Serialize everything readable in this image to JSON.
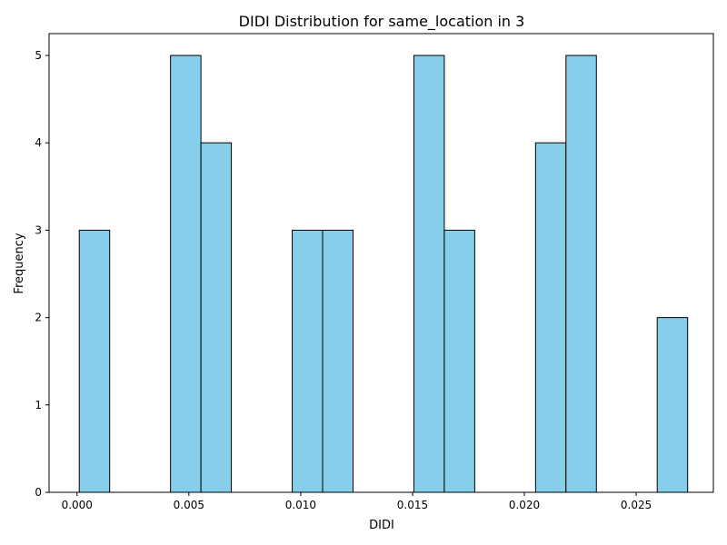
{
  "chart_data": {
    "type": "bar",
    "title": "DIDI Distribution for same_location in 3",
    "xlabel": "DIDI",
    "ylabel": "Frequency",
    "xlim": [
      -0.00125,
      0.02845
    ],
    "ylim": [
      0,
      5.25
    ],
    "bin_width": 0.00136,
    "bins": [
      {
        "x0": 0.0001,
        "x1": 0.00146,
        "count": 3
      },
      {
        "x0": 0.00146,
        "x1": 0.00282,
        "count": 0
      },
      {
        "x0": 0.00282,
        "x1": 0.00418,
        "count": 0
      },
      {
        "x0": 0.00418,
        "x1": 0.00554,
        "count": 5
      },
      {
        "x0": 0.00554,
        "x1": 0.0069,
        "count": 4
      },
      {
        "x0": 0.0069,
        "x1": 0.00826,
        "count": 0
      },
      {
        "x0": 0.00826,
        "x1": 0.00962,
        "count": 0
      },
      {
        "x0": 0.00962,
        "x1": 0.01098,
        "count": 3
      },
      {
        "x0": 0.01098,
        "x1": 0.01234,
        "count": 3
      },
      {
        "x0": 0.01234,
        "x1": 0.0137,
        "count": 0
      },
      {
        "x0": 0.0137,
        "x1": 0.01506,
        "count": 0
      },
      {
        "x0": 0.01506,
        "x1": 0.01642,
        "count": 5
      },
      {
        "x0": 0.01642,
        "x1": 0.01778,
        "count": 3
      },
      {
        "x0": 0.01778,
        "x1": 0.01914,
        "count": 0
      },
      {
        "x0": 0.01914,
        "x1": 0.0205,
        "count": 0
      },
      {
        "x0": 0.0205,
        "x1": 0.02186,
        "count": 4
      },
      {
        "x0": 0.02186,
        "x1": 0.02322,
        "count": 5
      },
      {
        "x0": 0.02322,
        "x1": 0.02458,
        "count": 0
      },
      {
        "x0": 0.02458,
        "x1": 0.02594,
        "count": 0
      },
      {
        "x0": 0.02594,
        "x1": 0.0273,
        "count": 2
      }
    ],
    "xticks": [
      {
        "value": 0.0,
        "label": "0.000"
      },
      {
        "value": 0.005,
        "label": "0.005"
      },
      {
        "value": 0.01,
        "label": "0.010"
      },
      {
        "value": 0.015,
        "label": "0.015"
      },
      {
        "value": 0.02,
        "label": "0.020"
      },
      {
        "value": 0.025,
        "label": "0.025"
      }
    ],
    "yticks": [
      {
        "value": 0,
        "label": "0"
      },
      {
        "value": 1,
        "label": "1"
      },
      {
        "value": 2,
        "label": "2"
      },
      {
        "value": 3,
        "label": "3"
      },
      {
        "value": 4,
        "label": "4"
      },
      {
        "value": 5,
        "label": "5"
      }
    ],
    "bar_color": "#87ceeb",
    "edge_color": "#000000",
    "grid": false
  }
}
